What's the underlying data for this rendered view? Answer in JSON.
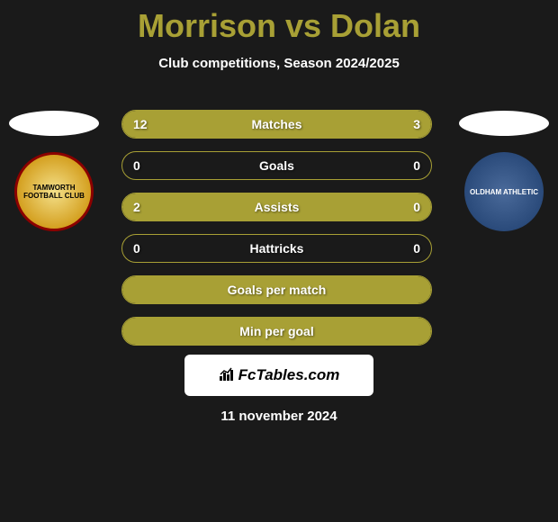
{
  "title": "Morrison vs Dolan",
  "subtitle": "Club competitions, Season 2024/2025",
  "colors": {
    "accent": "#a8a035",
    "background": "#1a1a1a",
    "text": "#ffffff"
  },
  "left_team": {
    "name": "Tamworth",
    "crest_label": "TAMWORTH FOOTBALL CLUB"
  },
  "right_team": {
    "name": "Oldham Athletic",
    "crest_label": "OLDHAM ATHLETIC"
  },
  "stats": [
    {
      "label": "Matches",
      "left_value": "12",
      "right_value": "3",
      "left_fill_pct": 80,
      "right_fill_pct": 20
    },
    {
      "label": "Goals",
      "left_value": "0",
      "right_value": "0",
      "left_fill_pct": 0,
      "right_fill_pct": 0
    },
    {
      "label": "Assists",
      "left_value": "2",
      "right_value": "0",
      "left_fill_pct": 100,
      "right_fill_pct": 0
    },
    {
      "label": "Hattricks",
      "left_value": "0",
      "right_value": "0",
      "left_fill_pct": 0,
      "right_fill_pct": 0
    },
    {
      "label": "Goals per match",
      "left_value": "",
      "right_value": "",
      "left_fill_pct": 100,
      "right_fill_pct": 0,
      "full": true
    },
    {
      "label": "Min per goal",
      "left_value": "",
      "right_value": "",
      "left_fill_pct": 100,
      "right_fill_pct": 0,
      "full": true
    }
  ],
  "brand": "FcTables.com",
  "date": "11 november 2024"
}
